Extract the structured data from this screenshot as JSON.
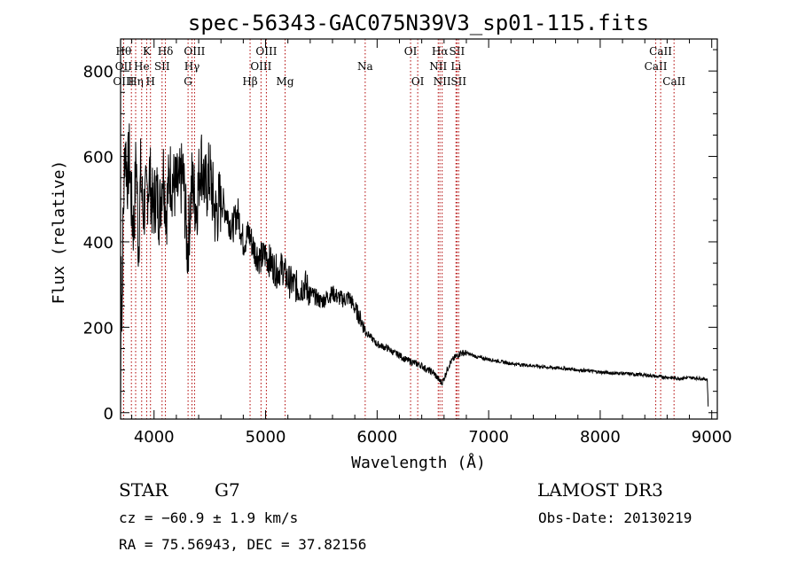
{
  "chart_data": {
    "type": "line",
    "title": "spec-56343-GAC075N39V3_sp01-115.fits",
    "xlabel": "Wavelength (Å)",
    "ylabel": "Flux (relative)",
    "xlim": [
      3700,
      9050
    ],
    "ylim": [
      -15,
      875
    ],
    "xticks": [
      4000,
      5000,
      6000,
      7000,
      8000,
      9000
    ],
    "xtick_labels": [
      "4000",
      "5000",
      "6000",
      "7000",
      "8000",
      "9000"
    ],
    "yticks": [
      0,
      200,
      400,
      600,
      800
    ],
    "ytick_labels": [
      "0",
      "200",
      "400",
      "600",
      "800"
    ],
    "grid": false,
    "colors": {
      "spectrum": "#000000",
      "lines": "#b00000",
      "text": "#000000"
    },
    "series": [
      {
        "name": "spectrum",
        "x": [
          3700,
          3705,
          3710,
          3720,
          3740,
          3760,
          3780,
          3800,
          3820,
          3840,
          3860,
          3880,
          3900,
          3930,
          3960,
          3990,
          4020,
          4050,
          4080,
          4110,
          4140,
          4180,
          4220,
          4260,
          4300,
          4340,
          4380,
          4420,
          4460,
          4500,
          4550,
          4600,
          4650,
          4700,
          4750,
          4800,
          4850,
          4900,
          4950,
          5000,
          5050,
          5100,
          5150,
          5200,
          5250,
          5300,
          5350,
          5400,
          5450,
          5500,
          5550,
          5600,
          5650,
          5700,
          5750,
          5800,
          5850,
          5900,
          5950,
          6000,
          6050,
          6100,
          6150,
          6200,
          6250,
          6300,
          6350,
          6400,
          6450,
          6500,
          6530,
          6560,
          6580,
          6600,
          6620,
          6650,
          6700,
          6750,
          6800,
          6850,
          6900,
          7000,
          7100,
          7200,
          7300,
          7400,
          7500,
          7600,
          7700,
          7800,
          7900,
          8000,
          8100,
          8200,
          8300,
          8400,
          8500,
          8600,
          8700,
          8800,
          8900,
          8960,
          8970
        ],
        "y": [
          0,
          420,
          150,
          400,
          640,
          550,
          600,
          470,
          430,
          610,
          380,
          560,
          470,
          500,
          560,
          470,
          520,
          470,
          580,
          470,
          560,
          530,
          520,
          560,
          380,
          540,
          480,
          600,
          520,
          560,
          460,
          500,
          470,
          430,
          470,
          400,
          420,
          380,
          360,
          370,
          350,
          330,
          340,
          310,
          300,
          290,
          300,
          280,
          270,
          260,
          270,
          280,
          270,
          265,
          270,
          245,
          220,
          190,
          175,
          160,
          155,
          150,
          140,
          135,
          125,
          120,
          115,
          110,
          100,
          95,
          85,
          75,
          70,
          80,
          95,
          115,
          130,
          140,
          140,
          135,
          130,
          125,
          120,
          115,
          112,
          110,
          107,
          105,
          103,
          100,
          98,
          95,
          93,
          92,
          90,
          88,
          85,
          83,
          80,
          82,
          80,
          78,
          0
        ]
      }
    ],
    "lines": [
      {
        "name": "Hθ",
        "wavelength": 3797,
        "row": 1,
        "anchor": "end"
      },
      {
        "name": "OII",
        "wavelength": 3727,
        "row": 2,
        "anchor": "middle"
      },
      {
        "name": "OIII",
        "wavelength": 3727,
        "row": 3,
        "anchor": "middle"
      },
      {
        "name": "Hη",
        "wavelength": 3835,
        "row": 3,
        "anchor": "middle"
      },
      {
        "name": "He",
        "wavelength": 3889,
        "row": 2,
        "anchor": "middle"
      },
      {
        "name": "K",
        "wavelength": 3934,
        "row": 1,
        "anchor": "middle"
      },
      {
        "name": "H",
        "wavelength": 3968,
        "row": 3,
        "anchor": "middle"
      },
      {
        "name": "SII",
        "wavelength": 4072,
        "row": 2,
        "anchor": "middle"
      },
      {
        "name": "Hδ",
        "wavelength": 4102,
        "row": 1,
        "anchor": "middle"
      },
      {
        "name": "G",
        "wavelength": 4305,
        "row": 3,
        "anchor": "middle"
      },
      {
        "name": "Hγ",
        "wavelength": 4340,
        "row": 2,
        "anchor": "middle"
      },
      {
        "name": "OIII",
        "wavelength": 4363,
        "row": 1,
        "anchor": "middle"
      },
      {
        "name": "Hβ",
        "wavelength": 4861,
        "row": 3,
        "anchor": "middle"
      },
      {
        "name": "OIII",
        "wavelength": 4959,
        "row": 2,
        "anchor": "middle"
      },
      {
        "name": "OIII",
        "wavelength": 5007,
        "row": 1,
        "anchor": "middle"
      },
      {
        "name": "Mg",
        "wavelength": 5175,
        "row": 3,
        "anchor": "middle"
      },
      {
        "name": "Na",
        "wavelength": 5893,
        "row": 2,
        "anchor": "middle"
      },
      {
        "name": "OI",
        "wavelength": 6300,
        "row": 1,
        "anchor": "middle"
      },
      {
        "name": "OI",
        "wavelength": 6364,
        "row": 3,
        "anchor": "middle"
      },
      {
        "name": "NII",
        "wavelength": 6548,
        "row": 2,
        "anchor": "middle"
      },
      {
        "name": "Hα",
        "wavelength": 6563,
        "row": 1,
        "anchor": "middle"
      },
      {
        "name": "NII",
        "wavelength": 6583,
        "row": 3,
        "anchor": "middle"
      },
      {
        "name": "Li",
        "wavelength": 6707,
        "row": 2,
        "anchor": "middle"
      },
      {
        "name": "SII",
        "wavelength": 6716,
        "row": 1,
        "anchor": "middle"
      },
      {
        "name": "SII",
        "wavelength": 6731,
        "row": 3,
        "anchor": "middle"
      },
      {
        "name": "CaII",
        "wavelength": 8498,
        "row": 2,
        "anchor": "middle"
      },
      {
        "name": "CaII",
        "wavelength": 8542,
        "row": 1,
        "anchor": "middle"
      },
      {
        "name": "CaII",
        "wavelength": 8662,
        "row": 3,
        "anchor": "middle"
      }
    ]
  },
  "footer": {
    "object_class": "STAR",
    "subclass": "G7",
    "survey": "LAMOST DR3",
    "redshift": "cz = −60.9 ± 1.9 km/s",
    "obs_date": "Obs-Date: 20130219",
    "coords": "RA =  75.56943, DEC =  37.82156"
  }
}
